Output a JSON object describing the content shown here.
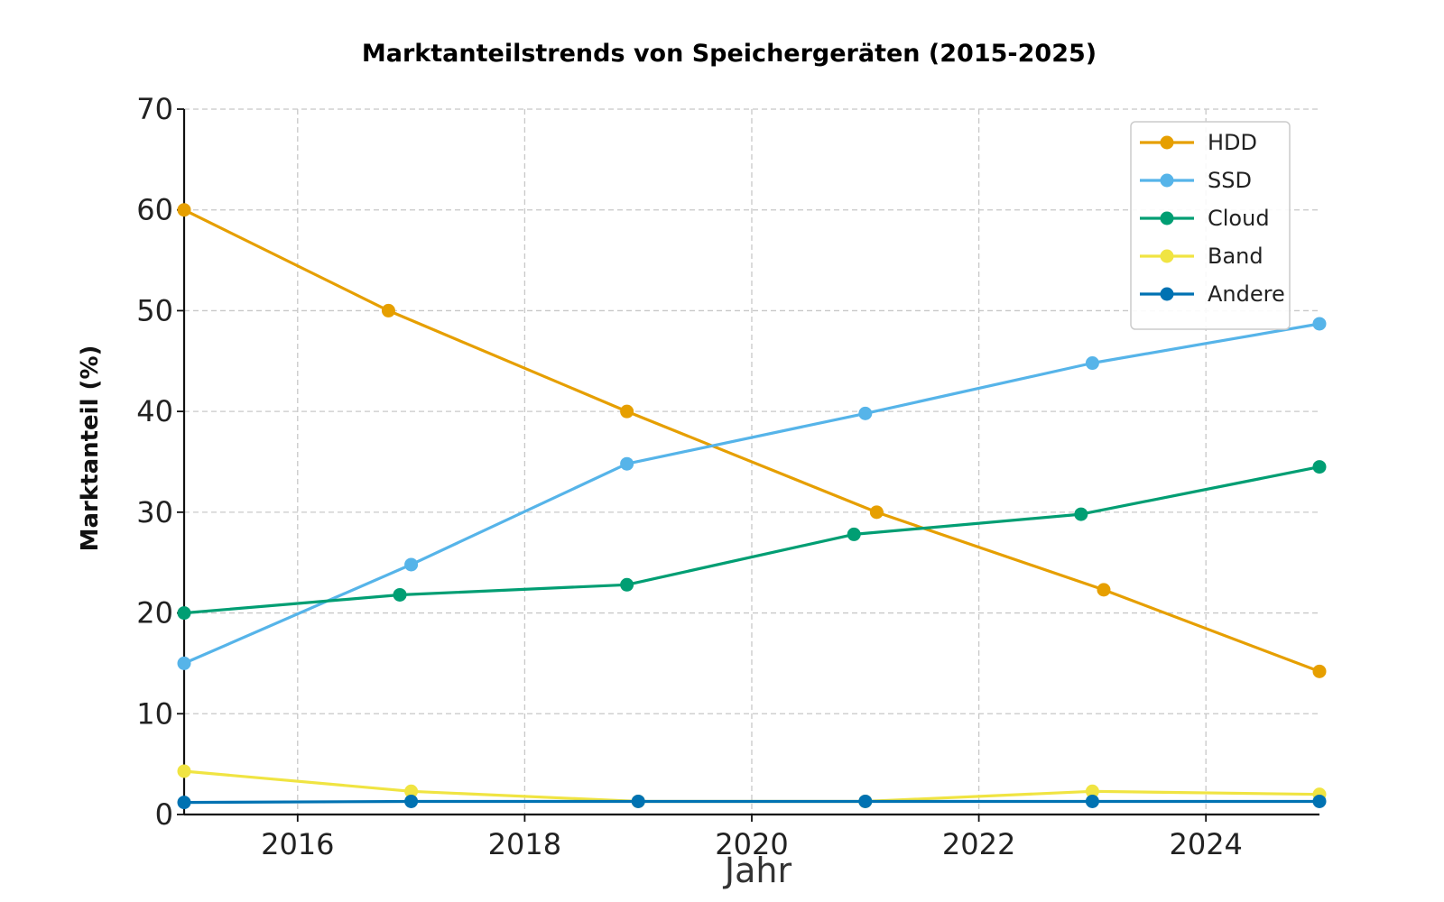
{
  "chart_data": {
    "type": "line",
    "title": "Marktanteilstrends von Speichergeräten (2015-2025)",
    "xlabel": "Jahr",
    "ylabel": "Marktanteil (%)",
    "xlim": [
      2015,
      2025
    ],
    "ylim": [
      0,
      70
    ],
    "x_ticks": [
      2016,
      2018,
      2020,
      2022,
      2024
    ],
    "y_ticks": [
      0,
      10,
      20,
      30,
      40,
      50,
      60,
      70
    ],
    "grid": true,
    "legend_position": "top-right",
    "series": [
      {
        "name": "HDD",
        "color": "#E69F00",
        "points": [
          [
            2015,
            60
          ],
          [
            2016.8,
            50
          ],
          [
            2018.9,
            40
          ],
          [
            2021.1,
            30
          ],
          [
            2023.1,
            22.3
          ],
          [
            2025,
            14.2
          ]
        ]
      },
      {
        "name": "SSD",
        "color": "#56B4E9",
        "points": [
          [
            2015,
            15
          ],
          [
            2017,
            24.8
          ],
          [
            2018.9,
            34.8
          ],
          [
            2021,
            39.8
          ],
          [
            2023,
            44.8
          ],
          [
            2025,
            48.7
          ]
        ]
      },
      {
        "name": "Cloud",
        "color": "#009E73",
        "points": [
          [
            2015,
            20
          ],
          [
            2016.9,
            21.8
          ],
          [
            2018.9,
            22.8
          ],
          [
            2020.9,
            27.8
          ],
          [
            2022.9,
            29.8
          ],
          [
            2025,
            34.5
          ]
        ]
      },
      {
        "name": "Band",
        "color": "#F0E442",
        "points": [
          [
            2015,
            4.3
          ],
          [
            2017,
            2.3
          ],
          [
            2019,
            1.3
          ],
          [
            2021,
            1.3
          ],
          [
            2023,
            2.3
          ],
          [
            2025,
            2.0
          ]
        ]
      },
      {
        "name": "Andere",
        "color": "#0072B2",
        "points": [
          [
            2015,
            1.2
          ],
          [
            2017,
            1.3
          ],
          [
            2019,
            1.3
          ],
          [
            2021,
            1.3
          ],
          [
            2023,
            1.3
          ],
          [
            2025,
            1.3
          ]
        ]
      }
    ]
  }
}
